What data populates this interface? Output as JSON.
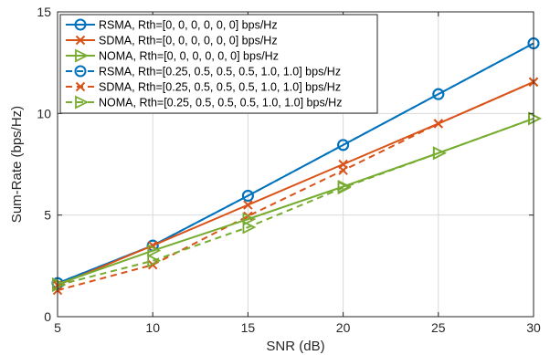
{
  "chart_data": {
    "type": "line",
    "title": "",
    "xlabel": "SNR (dB)",
    "ylabel": "Sum-Rate (bps/Hz)",
    "xlim": [
      5,
      30
    ],
    "ylim": [
      0,
      15
    ],
    "xticks": [
      5,
      10,
      15,
      20,
      25,
      30
    ],
    "yticks": [
      0,
      5,
      10,
      15
    ],
    "grid": true,
    "legend_position": "top-left",
    "x": [
      5,
      10,
      15,
      20,
      25,
      30
    ],
    "series": [
      {
        "name": "RSMA, Rth=[0, 0, 0, 0, 0, 0] bps/Hz",
        "values": [
          1.65,
          3.5,
          5.95,
          8.45,
          10.95,
          13.45
        ],
        "color": "#0072BD",
        "marker": "circle",
        "dash": "solid"
      },
      {
        "name": "SDMA, Rth=[0, 0, 0, 0, 0, 0] bps/Hz",
        "values": [
          1.55,
          3.5,
          5.5,
          7.5,
          9.5,
          11.55
        ],
        "color": "#D95319",
        "marker": "x",
        "dash": "solid"
      },
      {
        "name": "NOMA, Rth=[0, 0, 0, 0, 0, 0] bps/Hz",
        "values": [
          1.6,
          3.25,
          4.8,
          6.4,
          8.05,
          9.75
        ],
        "color": "#77AC30",
        "marker": "triangle-right",
        "dash": "solid"
      },
      {
        "name": "RSMA, Rth=[0.25, 0.5, 0.5, 0.5, 1.0, 1.0] bps/Hz",
        "values": [
          1.65,
          3.5,
          5.95,
          8.45,
          10.95,
          13.45
        ],
        "color": "#0072BD",
        "marker": "circle",
        "dash": "dashed"
      },
      {
        "name": "SDMA, Rth=[0.25, 0.5, 0.5, 0.5, 1.0, 1.0] bps/Hz",
        "values": [
          1.3,
          2.55,
          4.95,
          7.2,
          9.5,
          11.55
        ],
        "color": "#D95319",
        "marker": "x",
        "dash": "dashed"
      },
      {
        "name": "NOMA, Rth=[0.25, 0.5, 0.5, 0.5, 1.0, 1.0] bps/Hz",
        "values": [
          1.55,
          2.75,
          4.4,
          6.35,
          8.05,
          9.75
        ],
        "color": "#77AC30",
        "marker": "triangle-right",
        "dash": "dashed"
      }
    ]
  }
}
